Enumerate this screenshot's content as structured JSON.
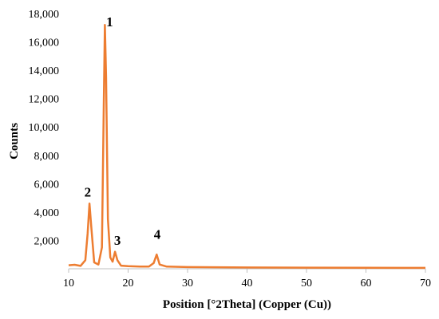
{
  "chart_data": {
    "type": "line",
    "xlabel": "Position [°2Theta] (Copper (Cu))",
    "ylabel": "Counts",
    "xlim": [
      10,
      70
    ],
    "ylim": [
      0,
      18000
    ],
    "x_ticks": [
      "10",
      "20",
      "30",
      "40",
      "50",
      "60",
      "70"
    ],
    "y_ticks": [
      "2,000",
      "4,000",
      "6,000",
      "8,000",
      "10,000",
      "12,000",
      "14,000",
      "16,000",
      "18,000"
    ],
    "line_color": "#ED7D31",
    "grid": false,
    "series": [
      {
        "x": [
          10,
          11,
          12,
          12.8,
          13.2,
          13.5,
          13.8,
          14.3,
          15.0,
          15.6,
          15.9,
          16.1,
          16.3,
          16.6,
          17.0,
          17.4,
          17.8,
          18.2,
          18.8,
          20,
          22,
          23.5,
          24.3,
          24.8,
          25.3,
          26.5,
          30,
          40,
          50,
          60,
          70
        ],
        "y": [
          250,
          280,
          200,
          600,
          2500,
          4600,
          3000,
          450,
          300,
          1500,
          11500,
          17200,
          13500,
          3500,
          800,
          500,
          1200,
          600,
          220,
          180,
          150,
          150,
          400,
          1000,
          300,
          150,
          120,
          90,
          80,
          70,
          60
        ]
      }
    ],
    "annotations": [
      {
        "text": "1",
        "x": 16.9,
        "y": 17100
      },
      {
        "text": "2",
        "x": 13.2,
        "y": 5100
      },
      {
        "text": "3",
        "x": 18.2,
        "y": 1700
      },
      {
        "text": "4",
        "x": 24.9,
        "y": 2100
      }
    ]
  }
}
